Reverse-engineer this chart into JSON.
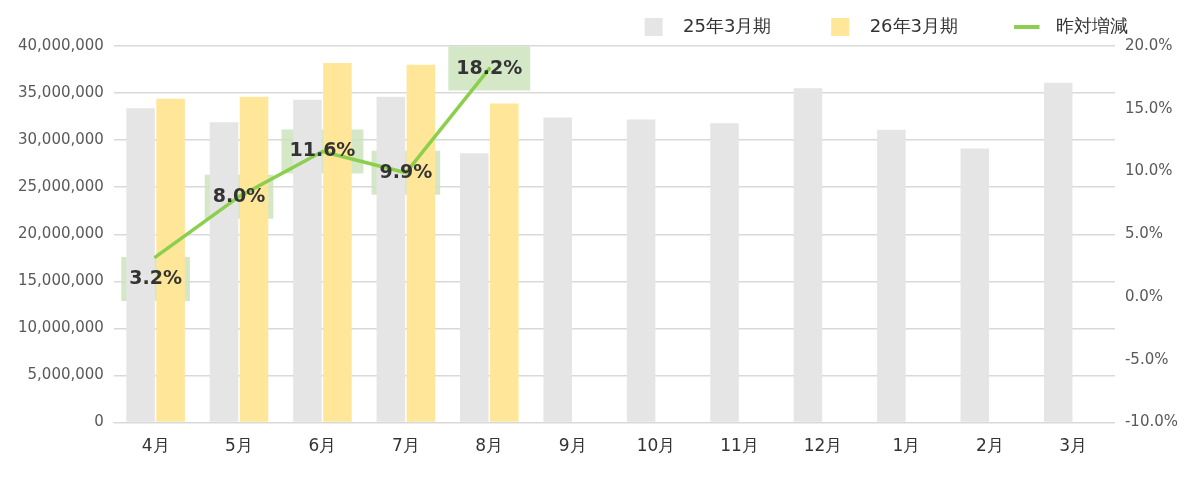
{
  "chart_data": {
    "type": "bar",
    "categories": [
      "4月",
      "5月",
      "6月",
      "7月",
      "8月",
      "9月",
      "10月",
      "11月",
      "12月",
      "1月",
      "2月",
      "3月"
    ],
    "series": [
      {
        "name": "25年3月期",
        "color": "#e6e5e5",
        "values": [
          33400000,
          31900000,
          34300000,
          34600000,
          28600000,
          32400000,
          32200000,
          31800000,
          35500000,
          31100000,
          29100000,
          36100000
        ]
      },
      {
        "name": "26年3月期",
        "color": "#ffe699",
        "values": [
          34400000,
          34600000,
          38200000,
          38000000,
          33900000,
          null,
          null,
          null,
          null,
          null,
          null,
          null
        ]
      },
      {
        "name": "昨対増減",
        "type": "line",
        "axis": "y2",
        "color": "#8ccf4d",
        "marker": "none",
        "values": [
          3.2,
          8.0,
          11.6,
          9.9,
          18.2,
          null,
          null,
          null,
          null,
          null,
          null,
          null
        ],
        "value_labels": [
          "3.2%",
          "8.0%",
          "11.6%",
          "9.9%",
          "18.2%",
          null,
          null,
          null,
          null,
          null,
          null,
          null
        ]
      }
    ],
    "ylim": [
      0,
      40000000
    ],
    "yticks": [
      {
        "value": 0,
        "label": "0"
      },
      {
        "value": 5000000,
        "label": "5,000,000"
      },
      {
        "value": 10000000,
        "label": "10,000,000"
      },
      {
        "value": 15000000,
        "label": "15,000,000"
      },
      {
        "value": 20000000,
        "label": "20,000,000"
      },
      {
        "value": 25000000,
        "label": "25,000,000"
      },
      {
        "value": 30000000,
        "label": "30,000,000"
      },
      {
        "value": 35000000,
        "label": "35,000,000"
      },
      {
        "value": 40000000,
        "label": "40,000,000"
      }
    ],
    "y2lim": [
      -10,
      20
    ],
    "y2ticks": [
      {
        "value": -10,
        "label": "-10.0%"
      },
      {
        "value": -5,
        "label": "-5.0%"
      },
      {
        "value": 0,
        "label": "0.0%"
      },
      {
        "value": 5,
        "label": "5.0%"
      },
      {
        "value": 10,
        "label": "10.0%"
      },
      {
        "value": 15,
        "label": "15.0%"
      },
      {
        "value": 20,
        "label": "20.0%"
      }
    ],
    "grid": "y",
    "legend": "top right"
  }
}
